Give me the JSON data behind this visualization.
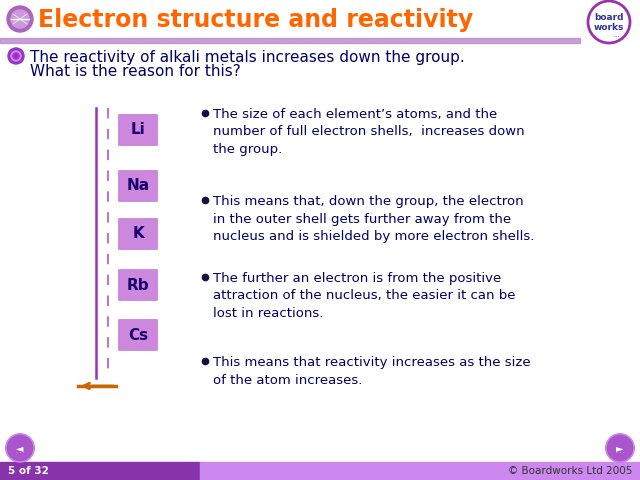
{
  "title": "Electron structure and reactivity",
  "title_color": "#FF6600",
  "title_fontsize": 17,
  "bg_color": "#FFFFFF",
  "header_line_color": "#C8A0D8",
  "intro_text_line1": "The reactivity of alkali metals increases down the group.",
  "intro_text_line2": "What is the reason for this?",
  "intro_color": "#000066",
  "intro_fontsize": 11,
  "bullet_color": "#000066",
  "bullet_fontsize": 9.5,
  "elements": [
    "Li",
    "Na",
    "K",
    "Rb",
    "Cs"
  ],
  "element_box_color": "#CC88DD",
  "element_text_color": "#1A006E",
  "element_fontsize": 11,
  "bullets": [
    "The size of each element’s atoms, and the\nnumber of full electron shells,  increases down\nthe group.",
    "This means that, down the group, the electron\nin the outer shell gets further away from the\nnucleus and is shielded by more electron shells.",
    "The further an electron is from the positive\nattraction of the nucleus, the easier it can be\nlost in reactions.",
    "This means that reactivity increases as the size\nof the atom increases."
  ],
  "slide_number": "5 of 32",
  "copyright": "© Boardworks Ltd 2005",
  "footer_text_color": "#FFFFFF",
  "arrow_line_color": "#CC6600",
  "dashed_line_color": "#BB77CC",
  "solid_line_color": "#9933BB",
  "intro_bullet_color": "#9933CC"
}
